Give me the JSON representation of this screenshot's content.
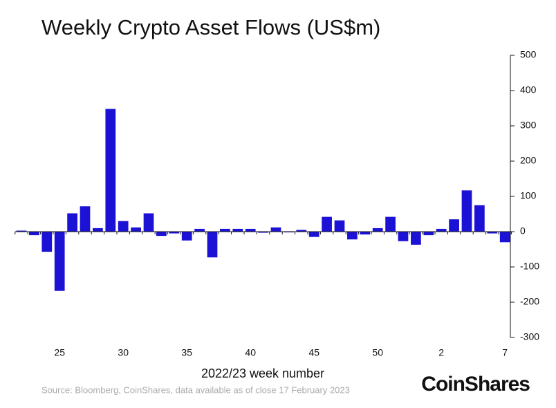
{
  "chart_data": {
    "type": "bar",
    "title": "Weekly Crypto Asset Flows (US$m)",
    "x_label": "2022/23 week number",
    "source": "Source: Bloomberg, CoinShares, data available as of close 17 February 2023",
    "brand": "CoinShares",
    "categories": [
      null,
      null,
      null,
      25,
      null,
      null,
      null,
      null,
      30,
      null,
      null,
      null,
      null,
      35,
      null,
      null,
      null,
      null,
      40,
      null,
      null,
      null,
      null,
      45,
      null,
      null,
      null,
      null,
      50,
      null,
      null,
      null,
      null,
      2,
      null,
      null,
      null,
      null,
      7
    ],
    "values": [
      3,
      -10,
      -57,
      -168,
      52,
      72,
      10,
      348,
      30,
      12,
      52,
      -12,
      -5,
      -25,
      8,
      -73,
      8,
      8,
      8,
      -3,
      12,
      -2,
      5,
      -15,
      42,
      32,
      -22,
      -8,
      10,
      42,
      -27,
      -37,
      -10,
      8,
      35,
      117,
      75,
      -5,
      -30
    ],
    "color": "#1c12d6",
    "ylim": [
      -300,
      500
    ],
    "yticks": [
      -300,
      -200,
      -100,
      0,
      100,
      200,
      300,
      400,
      500
    ]
  }
}
